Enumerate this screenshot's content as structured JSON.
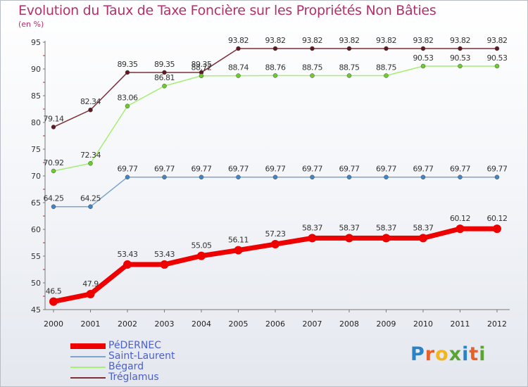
{
  "chart_data": {
    "type": "line",
    "title": "Evolution du Taux de Taxe Foncière sur les Propriétés Non Bâties",
    "ylabel": "(en %)",
    "xlabel": "",
    "categories": [
      "2000",
      "2001",
      "2002",
      "2003",
      "2004",
      "2005",
      "2006",
      "2007",
      "2008",
      "2009",
      "2010",
      "2011",
      "2012"
    ],
    "ylim": [
      45,
      95
    ],
    "yticks": [
      45,
      50,
      55,
      60,
      65,
      70,
      75,
      80,
      85,
      90,
      95
    ],
    "grid": false,
    "legend_position": "bottom-left",
    "series": [
      {
        "name": "PéDERNEC",
        "color": "#ee0000",
        "marker_color": "#ee0000",
        "values": [
          46.5,
          47.9,
          53.43,
          53.43,
          55.05,
          56.11,
          57.23,
          58.37,
          58.37,
          58.37,
          58.37,
          60.12,
          60.12
        ],
        "labels": [
          "46.5",
          "47.9",
          "53.43",
          "53.43",
          "55.05",
          "56.11",
          "57.23",
          "58.37",
          "58.37",
          "58.37",
          "58.37",
          "60.12",
          "60.12"
        ]
      },
      {
        "name": "Saint-Laurent",
        "color": "#7ca4cf",
        "marker_color": "#3f86c8",
        "values": [
          64.25,
          64.25,
          69.77,
          69.77,
          69.77,
          69.77,
          69.77,
          69.77,
          69.77,
          69.77,
          69.77,
          69.77,
          69.77
        ],
        "labels": [
          "64.25",
          "64.25",
          "69.77",
          "69.77",
          "69.77",
          "69.77",
          "69.77",
          "69.77",
          "69.77",
          "69.77",
          "69.77",
          "69.77",
          "69.77"
        ]
      },
      {
        "name": "Bégard",
        "color": "#a6ee74",
        "marker_color": "#6ccc2e",
        "values": [
          70.92,
          72.34,
          83.06,
          86.81,
          88.72,
          88.74,
          88.76,
          88.75,
          88.75,
          88.75,
          90.53,
          90.53,
          90.53
        ],
        "labels": [
          "70.92",
          "72.34",
          "83.06",
          "86.81",
          "88.72",
          "88.74",
          "88.76",
          "88.75",
          "88.75",
          "88.75",
          "90.53",
          "90.53",
          "90.53"
        ]
      },
      {
        "name": "Tréglamus",
        "color": "#7d2f38",
        "marker_color": "#5e1a20",
        "values": [
          79.14,
          82.34,
          89.35,
          89.35,
          89.35,
          93.82,
          93.82,
          93.82,
          93.82,
          93.82,
          93.82,
          93.82,
          93.82
        ],
        "labels": [
          "79.14",
          "82.34",
          "89.35",
          "89.35",
          "89.35",
          "93.82",
          "93.82",
          "93.82",
          "93.82",
          "93.82",
          "93.82",
          "93.82",
          "93.82"
        ]
      }
    ]
  },
  "logo": {
    "text": "Proxiti",
    "colors": [
      "#2b83c6",
      "#e8602a",
      "#f2b51d",
      "#5aa532",
      "#2b83c6",
      "#e8602a",
      "#5aa532"
    ]
  }
}
